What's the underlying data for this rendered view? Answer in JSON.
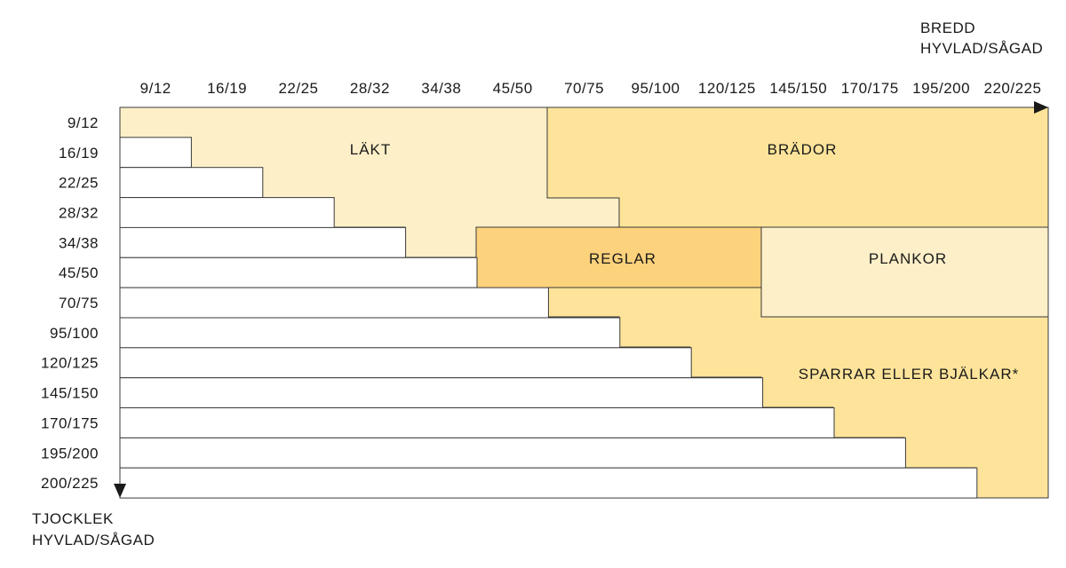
{
  "colors": {
    "lakt": "#fdefc8",
    "brador": "#fee49a",
    "reglar": "#fdd27c",
    "plankor": "#fdefc8",
    "sparrar": "#fee49a",
    "white": "#ffffff",
    "stroke": "#3a3a3a"
  },
  "axes": {
    "width_title_1": "BREDD",
    "width_title_2": "HYVLAD/SÅGAD",
    "thickness_title_1": "TJOCKLEK",
    "thickness_title_2": "HYVLAD/SÅGAD"
  },
  "widths": [
    "9/12",
    "16/19",
    "22/25",
    "28/32",
    "34/38",
    "45/50",
    "70/75",
    "95/100",
    "120/125",
    "145/150",
    "170/175",
    "195/200",
    "220/225"
  ],
  "thicknesses": [
    "9/12",
    "16/19",
    "22/25",
    "28/32",
    "34/38",
    "45/50",
    "70/75",
    "95/100",
    "120/125",
    "145/150",
    "170/175",
    "195/200",
    "200/225"
  ],
  "regions": {
    "lakt": "LÄKT",
    "brador": "BRÄDOR",
    "reglar": "REGLAR",
    "plankor": "PLANKOR",
    "sparrar": "SPARRAR ELLER BJÄLKAR*"
  }
}
